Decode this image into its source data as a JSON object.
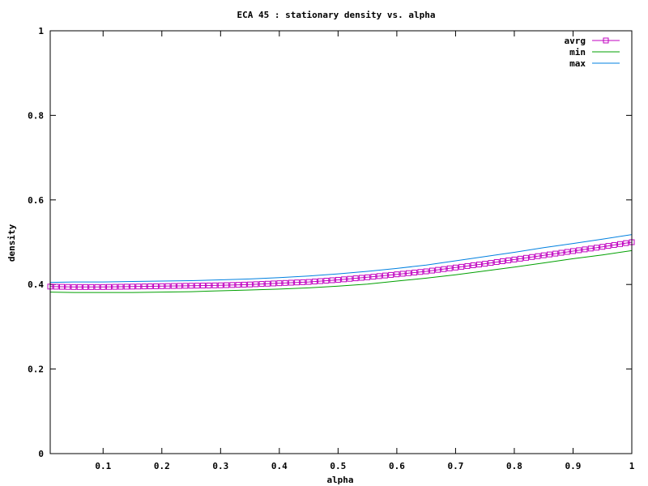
{
  "chart_data": {
    "type": "line",
    "title": "ECA 45 : stationary density vs. alpha",
    "xlabel": "alpha",
    "ylabel": "density",
    "xlim": [
      0.01,
      1.0
    ],
    "ylim": [
      0,
      1
    ],
    "xticks": [
      "0.1",
      "0.2",
      "0.3",
      "0.4",
      "0.5",
      "0.6",
      "0.7",
      "0.8",
      "0.9",
      "1"
    ],
    "yticks": [
      "0",
      "0.2",
      "0.4",
      "0.6",
      "0.8",
      "1"
    ],
    "grid": false,
    "legend_position": "top-right",
    "x": [
      0.01,
      0.05,
      0.1,
      0.15,
      0.2,
      0.25,
      0.3,
      0.35,
      0.4,
      0.45,
      0.5,
      0.55,
      0.6,
      0.65,
      0.7,
      0.75,
      0.8,
      0.85,
      0.9,
      0.95,
      1.0
    ],
    "series": [
      {
        "name": "avrg",
        "color": "#c000c0",
        "marker": "square",
        "values": [
          0.395,
          0.394,
          0.394,
          0.395,
          0.396,
          0.397,
          0.398,
          0.4,
          0.403,
          0.406,
          0.411,
          0.417,
          0.424,
          0.431,
          0.44,
          0.449,
          0.459,
          0.469,
          0.479,
          0.489,
          0.5
        ]
      },
      {
        "name": "min",
        "color": "#00a000",
        "marker": "none",
        "values": [
          0.382,
          0.381,
          0.381,
          0.381,
          0.382,
          0.383,
          0.385,
          0.387,
          0.389,
          0.392,
          0.396,
          0.401,
          0.408,
          0.415,
          0.423,
          0.432,
          0.441,
          0.451,
          0.461,
          0.47,
          0.48
        ]
      },
      {
        "name": "max",
        "color": "#0080e0",
        "marker": "none",
        "values": [
          0.405,
          0.406,
          0.406,
          0.407,
          0.408,
          0.409,
          0.411,
          0.413,
          0.416,
          0.42,
          0.425,
          0.431,
          0.438,
          0.446,
          0.456,
          0.466,
          0.476,
          0.487,
          0.497,
          0.507,
          0.518
        ]
      }
    ]
  }
}
